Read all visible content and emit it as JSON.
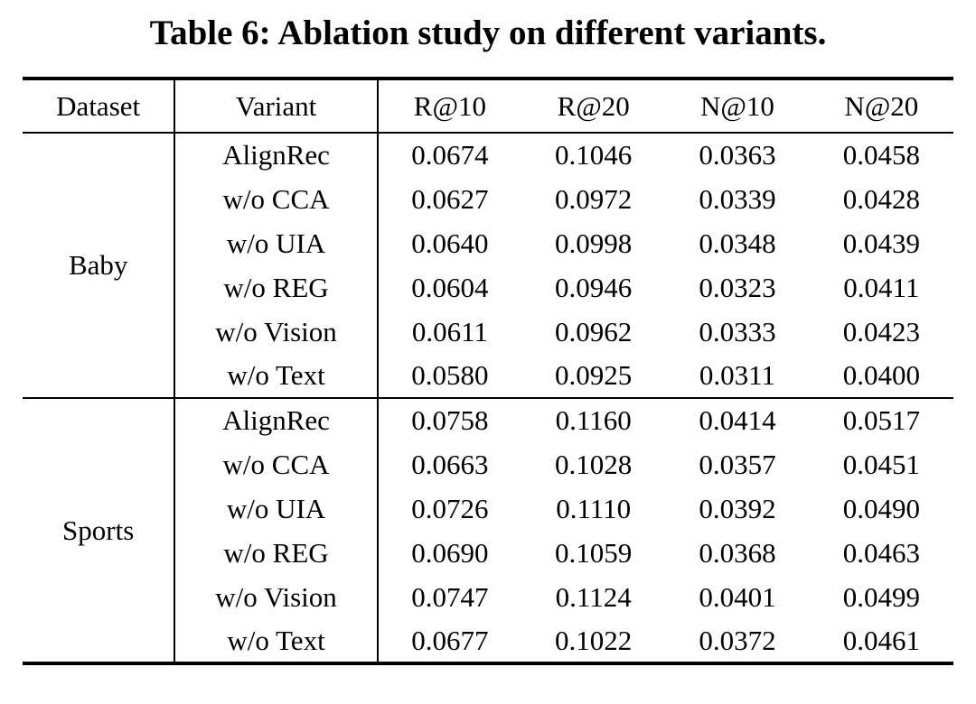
{
  "title": "Table 6: Ablation study on different variants.",
  "table": {
    "headers": [
      "Dataset",
      "Variant",
      "R@10",
      "R@20",
      "N@10",
      "N@20"
    ],
    "sections": [
      {
        "dataset": "Baby",
        "rows": [
          {
            "variant": "AlignRec",
            "bold": true,
            "values": [
              "0.0674",
              "0.1046",
              "0.0363",
              "0.0458"
            ]
          },
          {
            "variant": "w/o CCA",
            "bold": false,
            "values": [
              "0.0627",
              "0.0972",
              "0.0339",
              "0.0428"
            ]
          },
          {
            "variant": "w/o UIA",
            "bold": false,
            "values": [
              "0.0640",
              "0.0998",
              "0.0348",
              "0.0439"
            ]
          },
          {
            "variant": "w/o REG",
            "bold": false,
            "values": [
              "0.0604",
              "0.0946",
              "0.0323",
              "0.0411"
            ]
          },
          {
            "variant": "w/o Vision",
            "bold": false,
            "values": [
              "0.0611",
              "0.0962",
              "0.0333",
              "0.0423"
            ]
          },
          {
            "variant": "w/o Text",
            "bold": false,
            "values": [
              "0.0580",
              "0.0925",
              "0.0311",
              "0.0400"
            ]
          }
        ]
      },
      {
        "dataset": "Sports",
        "rows": [
          {
            "variant": "AlignRec",
            "bold": true,
            "values": [
              "0.0758",
              "0.1160",
              "0.0414",
              "0.0517"
            ]
          },
          {
            "variant": "w/o CCA",
            "bold": false,
            "values": [
              "0.0663",
              "0.1028",
              "0.0357",
              "0.0451"
            ]
          },
          {
            "variant": "w/o UIA",
            "bold": false,
            "values": [
              "0.0726",
              "0.1110",
              "0.0392",
              "0.0490"
            ]
          },
          {
            "variant": "w/o REG",
            "bold": false,
            "values": [
              "0.0690",
              "0.1059",
              "0.0368",
              "0.0463"
            ]
          },
          {
            "variant": "w/o Vision",
            "bold": false,
            "values": [
              "0.0747",
              "0.1124",
              "0.0401",
              "0.0499"
            ]
          },
          {
            "variant": "w/o Text",
            "bold": false,
            "values": [
              "0.0677",
              "0.1022",
              "0.0372",
              "0.0461"
            ]
          }
        ]
      }
    ],
    "colors": {
      "text": "#000000",
      "background": "#ffffff",
      "rule": "#000000"
    }
  }
}
